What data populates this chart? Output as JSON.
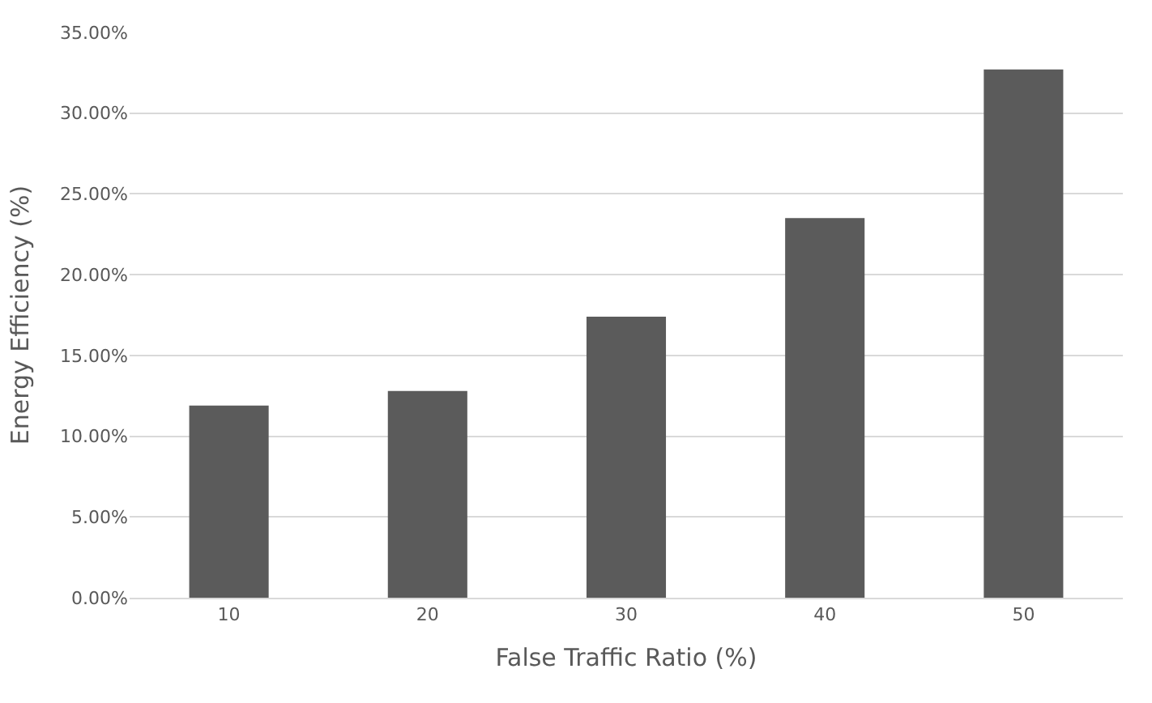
{
  "chart_data": {
    "type": "bar",
    "xlabel": "False Traffic Ratio (%)",
    "ylabel": "Energy Efficiency (%)",
    "categories": [
      "10",
      "20",
      "30",
      "40",
      "50"
    ],
    "values": [
      11.9,
      12.8,
      17.4,
      23.5,
      32.7
    ],
    "color": "#5b5b5b",
    "ylim": [
      0,
      35
    ],
    "yticks": [
      {
        "value": 0,
        "label": "0.00%"
      },
      {
        "value": 5,
        "label": "5.00%"
      },
      {
        "value": 10,
        "label": "10.00%"
      },
      {
        "value": 15,
        "label": "15.00%"
      },
      {
        "value": 20,
        "label": "20.00%"
      },
      {
        "value": 25,
        "label": "25.00%"
      },
      {
        "value": 30,
        "label": "30.00%"
      },
      {
        "value": 35,
        "label": "35.00%"
      }
    ],
    "grid": "y"
  }
}
